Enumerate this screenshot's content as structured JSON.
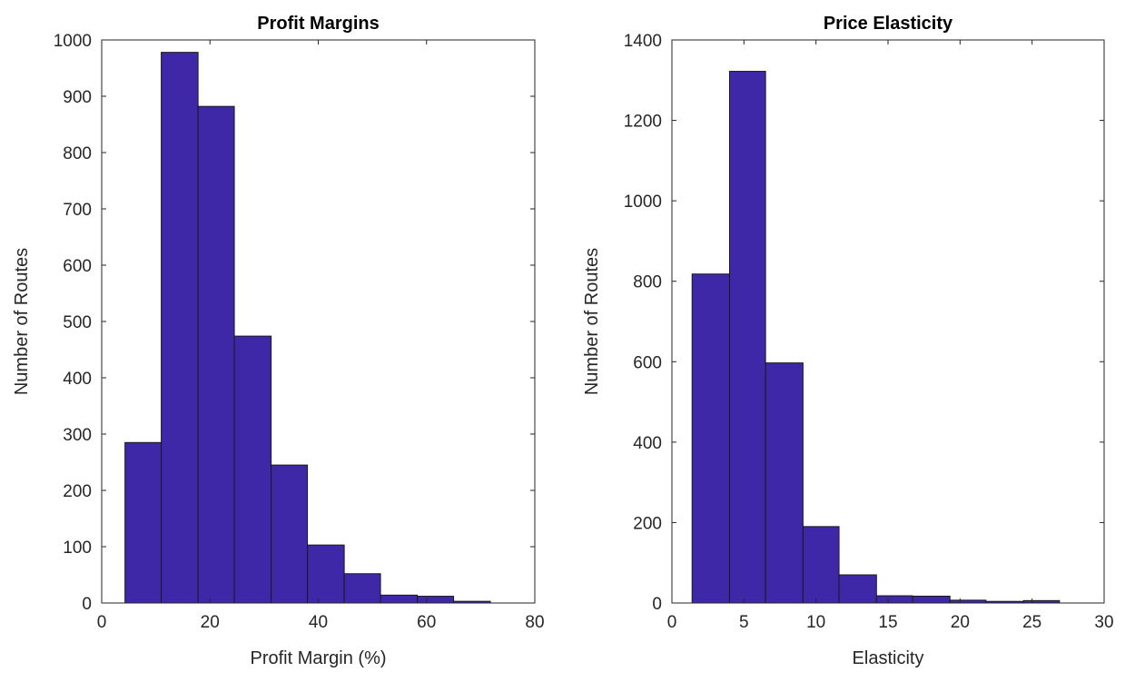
{
  "chart_data": [
    {
      "type": "bar",
      "title": "Profit Margins",
      "xlabel": "Profit Margin (%)",
      "ylabel": "Number of Routes",
      "xlim": [
        0,
        80
      ],
      "ylim": [
        0,
        1000
      ],
      "xticks": [
        0,
        20,
        40,
        60,
        80
      ],
      "yticks": [
        0,
        100,
        200,
        300,
        400,
        500,
        600,
        700,
        800,
        900,
        1000
      ],
      "grid": false,
      "bar_color": "#3e28a8",
      "bins": [
        {
          "x0": 4.3,
          "x1": 11.0,
          "value": 285
        },
        {
          "x0": 11.0,
          "x1": 17.8,
          "value": 978
        },
        {
          "x0": 17.8,
          "x1": 24.5,
          "value": 882
        },
        {
          "x0": 24.5,
          "x1": 31.3,
          "value": 474
        },
        {
          "x0": 31.3,
          "x1": 38.0,
          "value": 245
        },
        {
          "x0": 38.0,
          "x1": 44.8,
          "value": 103
        },
        {
          "x0": 44.8,
          "x1": 51.5,
          "value": 52
        },
        {
          "x0": 51.5,
          "x1": 58.3,
          "value": 14
        },
        {
          "x0": 58.3,
          "x1": 65.0,
          "value": 12
        },
        {
          "x0": 65.0,
          "x1": 71.8,
          "value": 3
        }
      ]
    },
    {
      "type": "bar",
      "title": "Price Elasticity",
      "xlabel": "Elasticity",
      "ylabel": "Number of Routes",
      "xlim": [
        0,
        30
      ],
      "ylim": [
        0,
        1400
      ],
      "xticks": [
        0,
        5,
        10,
        15,
        20,
        25,
        30
      ],
      "yticks": [
        0,
        200,
        400,
        600,
        800,
        1000,
        1200,
        1400
      ],
      "grid": false,
      "bar_color": "#3e28a8",
      "bins": [
        {
          "x0": 1.4,
          "x1": 4.0,
          "value": 818
        },
        {
          "x0": 4.0,
          "x1": 6.5,
          "value": 1322
        },
        {
          "x0": 6.5,
          "x1": 9.1,
          "value": 597
        },
        {
          "x0": 9.1,
          "x1": 11.6,
          "value": 190
        },
        {
          "x0": 11.6,
          "x1": 14.2,
          "value": 70
        },
        {
          "x0": 14.2,
          "x1": 16.7,
          "value": 18
        },
        {
          "x0": 16.7,
          "x1": 19.3,
          "value": 17
        },
        {
          "x0": 19.3,
          "x1": 21.8,
          "value": 7
        },
        {
          "x0": 21.8,
          "x1": 24.4,
          "value": 4
        },
        {
          "x0": 24.4,
          "x1": 26.9,
          "value": 6
        }
      ]
    }
  ]
}
